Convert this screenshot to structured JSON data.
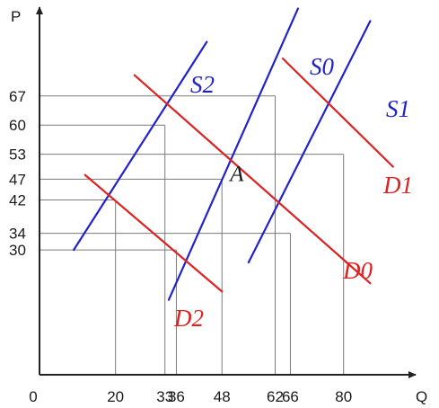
{
  "chart_data": {
    "type": "line",
    "x_axis_letter": "Q",
    "y_axis_letter": "P",
    "origin_label": "0",
    "x_ticks": [
      20,
      33,
      36,
      48,
      62,
      66,
      80
    ],
    "y_ticks": [
      30,
      34,
      42,
      47,
      53,
      60,
      67
    ],
    "curves": [
      {
        "name": "S0",
        "kind": "supply",
        "color": "#2222cc",
        "points": [
          [
            34,
            18
          ],
          [
            68,
            88
          ]
        ]
      },
      {
        "name": "S1",
        "kind": "supply",
        "color": "#2222cc",
        "points": [
          [
            55,
            27
          ],
          [
            87,
            85
          ]
        ]
      },
      {
        "name": "S2",
        "kind": "supply",
        "color": "#2222cc",
        "points": [
          [
            9,
            30
          ],
          [
            44,
            80
          ]
        ]
      },
      {
        "name": "D0",
        "kind": "demand",
        "color": "#dd2222",
        "points": [
          [
            25,
            72
          ],
          [
            87,
            22
          ]
        ]
      },
      {
        "name": "D1",
        "kind": "demand",
        "color": "#dd2222",
        "points": [
          [
            64,
            76
          ],
          [
            93,
            50
          ]
        ]
      },
      {
        "name": "D2",
        "kind": "demand",
        "color": "#dd2222",
        "points": [
          [
            12,
            48
          ],
          [
            48,
            20
          ]
        ]
      }
    ],
    "guides": [
      {
        "x": 20,
        "y": 42
      },
      {
        "x": 33,
        "y": 60
      },
      {
        "x": 36,
        "y": 30
      },
      {
        "x": 48,
        "y": 47
      },
      {
        "x": 62,
        "y": 67
      },
      {
        "x": 66,
        "y": 34
      },
      {
        "x": 80,
        "y": 53
      }
    ],
    "point_labels": [
      {
        "text": "A",
        "x": 48,
        "y": 47
      }
    ],
    "colors": {
      "axis": "#222222",
      "guide": "#7a7a7a"
    }
  }
}
